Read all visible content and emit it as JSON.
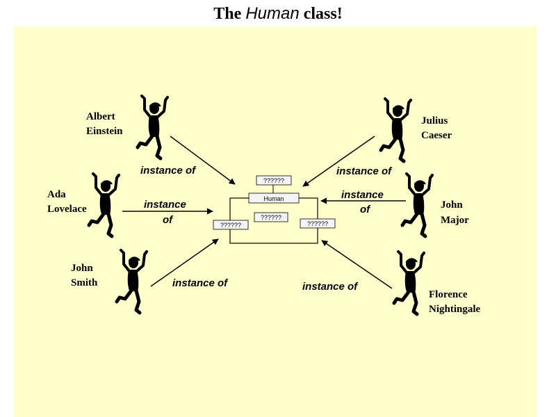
{
  "title": {
    "prefix": "The",
    "emphasis": "Human",
    "suffix": "class!"
  },
  "diagram": {
    "class_box": {
      "name": "Human",
      "attr_top": "??????",
      "attr_center": "??????",
      "attr_left": "??????",
      "attr_right": "??????"
    },
    "instances": [
      {
        "id": "albert-einstein",
        "name_line1": "Albert",
        "name_line2": "Einstein"
      },
      {
        "id": "julius-caeser",
        "name_line1": "Julius",
        "name_line2": "Caeser"
      },
      {
        "id": "ada-lovelace",
        "name_line1": "Ada",
        "name_line2": "Lovelace"
      },
      {
        "id": "john-major",
        "name_line1": "John",
        "name_line2": "Major"
      },
      {
        "id": "john-smith",
        "name_line1": "John",
        "name_line2": "Smith"
      },
      {
        "id": "florence-nightingale",
        "name_line1": "Florence",
        "name_line2": "Nightingale"
      }
    ],
    "relations": {
      "einstein": "instance of",
      "caeser": "instance of",
      "lovelace_l1": "instance",
      "lovelace_l2": "of",
      "major_l1": "instance",
      "major_l2": "of",
      "smith": "instance of",
      "nightingale": "instance of"
    }
  },
  "colors": {
    "panel_background": "#ffffcc",
    "ink": "#000000",
    "box_fill": "#f4f4f4"
  }
}
